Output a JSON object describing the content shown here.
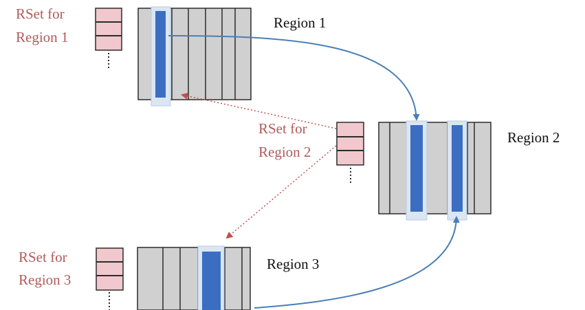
{
  "rsets": [
    {
      "id": "rset-1",
      "label_line1": "RSet for",
      "label_line2": "Region 1"
    },
    {
      "id": "rset-2",
      "label_line1": "RSet for",
      "label_line2": "Region 2"
    },
    {
      "id": "rset-3",
      "label_line1": "RSet for",
      "label_line2": "Region 3"
    }
  ],
  "regions": [
    {
      "id": "region-1",
      "label": "Region 1"
    },
    {
      "id": "region-2",
      "label": "Region 2"
    },
    {
      "id": "region-3",
      "label": "Region 3"
    }
  ],
  "colors": {
    "region_fill": "#d0d0d0",
    "region_stroke": "#2b2b2b",
    "card_blue": "#3b6ec0",
    "card_halo": "#dbe6f3",
    "rset_fill": "#f1c8cd",
    "rset_stroke": "#2b2b2b",
    "rset_text": "#b15a5a",
    "solid_arrow": "#4a7fb5",
    "dotted_arrow": "#c0504d"
  }
}
